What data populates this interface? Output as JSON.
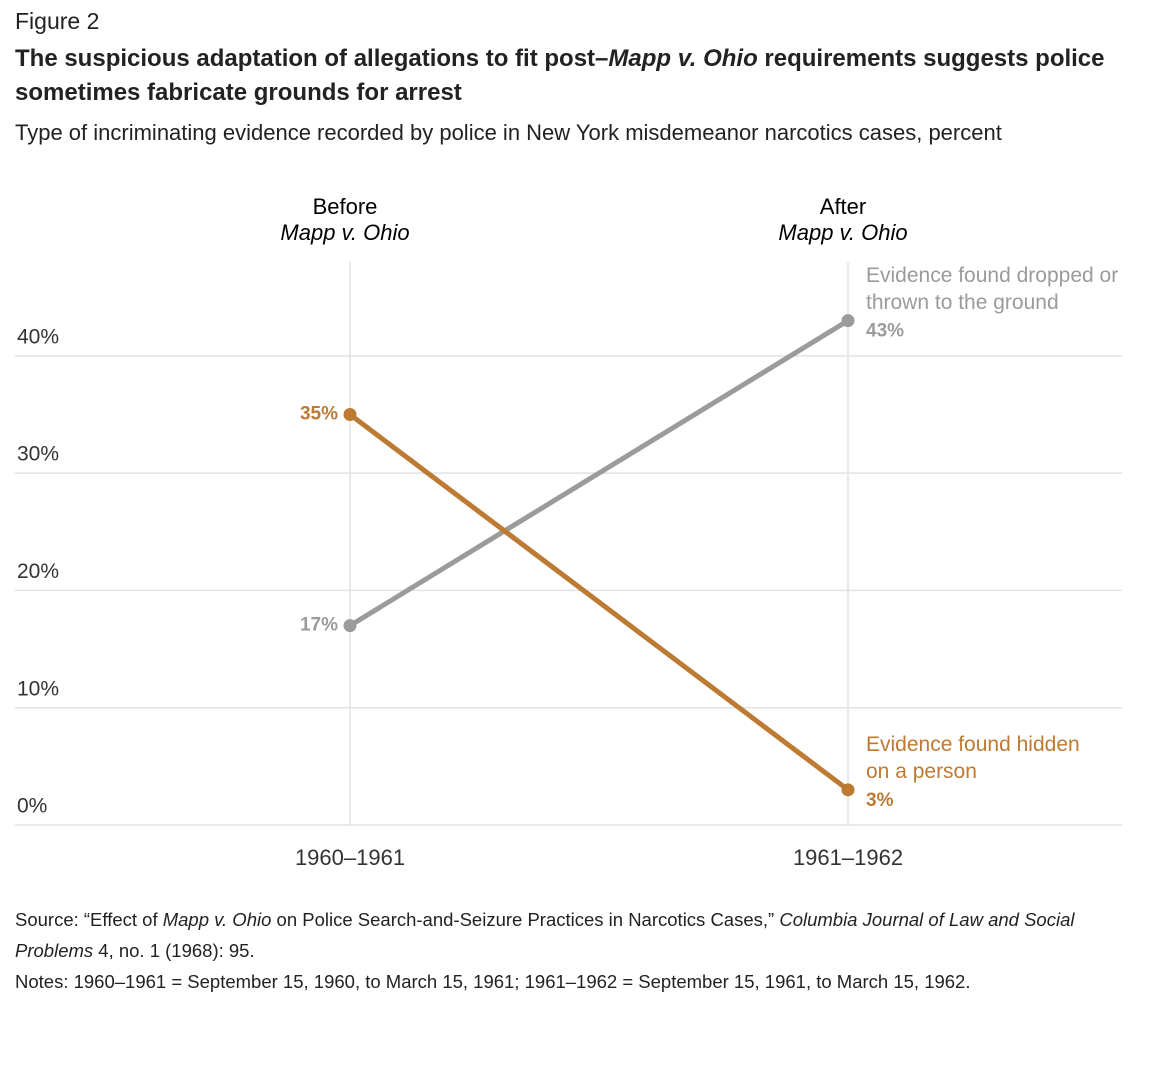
{
  "figure_label": "Figure 2",
  "chart_data": {
    "type": "slope",
    "title": [
      "The suspicious adaptation of allegations to fit post–",
      "Mapp v. Ohio",
      " requirements suggests police sometimes fabricate grounds for arrest"
    ],
    "subtitle": "Type of incriminating evidence recorded by police in New York misdemeanor narcotics cases, percent",
    "column_headers": [
      [
        "Before",
        "Mapp v. Ohio"
      ],
      [
        "After",
        "Mapp v. Ohio"
      ]
    ],
    "categories": [
      "1960–1961",
      "1961–1962"
    ],
    "series": [
      {
        "name": "Evidence found dropped or thrown to the ground",
        "color": "#9b9b9b",
        "values": [
          17,
          43
        ],
        "value_labels": [
          "17%",
          "43%"
        ]
      },
      {
        "name": "Evidence found hidden on a person",
        "color": "#bd7a33",
        "values": [
          35,
          3
        ],
        "value_labels": [
          "35%",
          "3%"
        ]
      }
    ],
    "ylim": [
      0,
      48
    ],
    "yticks": [
      {
        "value": 0,
        "label": "0%"
      },
      {
        "value": 10,
        "label": "10%"
      },
      {
        "value": 20,
        "label": "20%"
      },
      {
        "value": 30,
        "label": "30%"
      },
      {
        "value": 40,
        "label": "40%"
      }
    ],
    "grid": true
  },
  "source": [
    "Source: “Effect of ",
    "Mapp v. Ohio",
    " on Police Search-and-Seizure Practices in Narcotics Cases,” ",
    "Columbia Journal of Law and Social Problems",
    " 4, no. 1 (1968): 95."
  ],
  "notes": "Notes: 1960–1961 = September 15, 1960, to March 15, 1961; 1961–1962 = September 15, 1961, to March 15, 1962."
}
